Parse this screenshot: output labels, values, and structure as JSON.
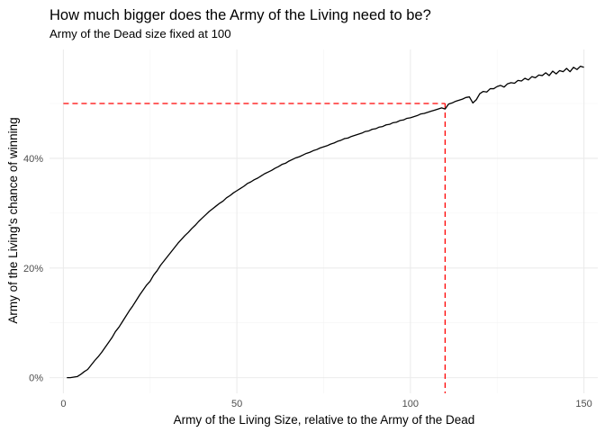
{
  "chart_data": {
    "type": "line",
    "title": "How much bigger does the Army of the Living need to be?",
    "subtitle": "Army of the Dead size fixed at 100",
    "xlabel": "Army of the Living Size, relative to the Army of the Dead",
    "ylabel": "Army of the Living's chance of winning",
    "xlim": [
      -4,
      154
    ],
    "ylim": [
      -0.0285,
      0.5985
    ],
    "x_ticks": [
      0,
      50,
      100,
      150
    ],
    "x_tick_labels": [
      "0",
      "50",
      "100",
      "150"
    ],
    "y_ticks": [
      0,
      0.2,
      0.4
    ],
    "y_tick_labels": [
      "0%",
      "20%",
      "40%"
    ],
    "grid": true,
    "reference": {
      "x": 110,
      "y": 0.5,
      "color": "#ff0000",
      "style": "dashed"
    },
    "series": [
      {
        "name": "chance of winning",
        "color": "#000000",
        "x": [
          1,
          2,
          3,
          4,
          5,
          6,
          7,
          8,
          9,
          10,
          11,
          12,
          13,
          14,
          15,
          16,
          17,
          18,
          19,
          20,
          21,
          22,
          23,
          24,
          25,
          26,
          27,
          28,
          29,
          30,
          31,
          32,
          33,
          34,
          35,
          36,
          37,
          38,
          39,
          40,
          41,
          42,
          43,
          44,
          45,
          46,
          47,
          48,
          49,
          50,
          51,
          52,
          53,
          54,
          55,
          56,
          57,
          58,
          59,
          60,
          61,
          62,
          63,
          64,
          65,
          66,
          67,
          68,
          69,
          70,
          71,
          72,
          73,
          74,
          75,
          76,
          77,
          78,
          79,
          80,
          81,
          82,
          83,
          84,
          85,
          86,
          87,
          88,
          89,
          90,
          91,
          92,
          93,
          94,
          95,
          96,
          97,
          98,
          99,
          100,
          101,
          102,
          103,
          104,
          105,
          106,
          107,
          108,
          109,
          110,
          111,
          112,
          113,
          114,
          115,
          116,
          117,
          118,
          119,
          120,
          121,
          122,
          123,
          124,
          125,
          126,
          127,
          128,
          129,
          130,
          131,
          132,
          133,
          134,
          135,
          136,
          137,
          138,
          139,
          140,
          141,
          142,
          143,
          144,
          145,
          146,
          147,
          148,
          149,
          150
        ],
        "values": [
          0.0,
          0.0,
          0.001,
          0.002,
          0.006,
          0.011,
          0.015,
          0.023,
          0.031,
          0.038,
          0.046,
          0.055,
          0.064,
          0.073,
          0.084,
          0.092,
          0.102,
          0.112,
          0.122,
          0.131,
          0.141,
          0.151,
          0.16,
          0.169,
          0.176,
          0.187,
          0.195,
          0.205,
          0.213,
          0.221,
          0.229,
          0.237,
          0.245,
          0.252,
          0.259,
          0.265,
          0.272,
          0.278,
          0.285,
          0.291,
          0.297,
          0.303,
          0.308,
          0.313,
          0.318,
          0.322,
          0.328,
          0.332,
          0.337,
          0.341,
          0.345,
          0.349,
          0.354,
          0.357,
          0.361,
          0.364,
          0.368,
          0.372,
          0.375,
          0.378,
          0.382,
          0.385,
          0.389,
          0.391,
          0.395,
          0.398,
          0.401,
          0.403,
          0.406,
          0.409,
          0.411,
          0.414,
          0.416,
          0.419,
          0.421,
          0.423,
          0.426,
          0.428,
          0.431,
          0.433,
          0.436,
          0.437,
          0.44,
          0.442,
          0.444,
          0.446,
          0.449,
          0.45,
          0.453,
          0.454,
          0.457,
          0.458,
          0.461,
          0.462,
          0.465,
          0.466,
          0.469,
          0.47,
          0.473,
          0.474,
          0.476,
          0.478,
          0.481,
          0.482,
          0.484,
          0.486,
          0.488,
          0.49,
          0.492,
          0.49,
          0.499,
          0.501,
          0.504,
          0.506,
          0.508,
          0.511,
          0.512,
          0.501,
          0.507,
          0.518,
          0.522,
          0.521,
          0.527,
          0.527,
          0.531,
          0.533,
          0.53,
          0.536,
          0.538,
          0.537,
          0.542,
          0.541,
          0.546,
          0.543,
          0.549,
          0.547,
          0.552,
          0.551,
          0.556,
          0.551,
          0.559,
          0.554,
          0.56,
          0.558,
          0.564,
          0.558,
          0.566,
          0.562,
          0.568,
          0.566
        ]
      }
    ]
  }
}
